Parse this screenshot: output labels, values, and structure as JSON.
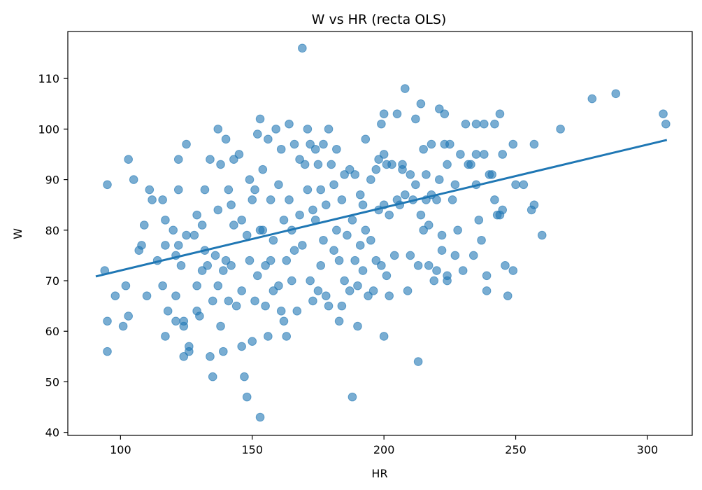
{
  "chart_data": {
    "type": "scatter",
    "title": "W vs HR (recta OLS)",
    "xlabel": "HR",
    "ylabel": "W",
    "xlim": [
      80,
      317
    ],
    "ylim": [
      39.4,
      119.3
    ],
    "xticks": [
      100,
      150,
      200,
      250,
      300
    ],
    "yticks": [
      40,
      50,
      60,
      70,
      80,
      90,
      100,
      110
    ],
    "grid": false,
    "point_color": "#1f77b4",
    "line_color": "#1f77b4",
    "series": [
      {
        "kind": "points",
        "points": [
          [
            95,
            89
          ],
          [
            95,
            62
          ],
          [
            95,
            56
          ],
          [
            94,
            72
          ],
          [
            98,
            67
          ],
          [
            101,
            61
          ],
          [
            102,
            69
          ],
          [
            103,
            94
          ],
          [
            103,
            63
          ],
          [
            105,
            90
          ],
          [
            107,
            76
          ],
          [
            108,
            77
          ],
          [
            109,
            81
          ],
          [
            110,
            67
          ],
          [
            111,
            88
          ],
          [
            112,
            86
          ],
          [
            114,
            74
          ],
          [
            116,
            86
          ],
          [
            116,
            69
          ],
          [
            117,
            82
          ],
          [
            117,
            77
          ],
          [
            117,
            59
          ],
          [
            118,
            64
          ],
          [
            120,
            80
          ],
          [
            121,
            75
          ],
          [
            121,
            67
          ],
          [
            121,
            62
          ],
          [
            122,
            94
          ],
          [
            122,
            77
          ],
          [
            122,
            88
          ],
          [
            123,
            73
          ],
          [
            124,
            61
          ],
          [
            124,
            55
          ],
          [
            124,
            62
          ],
          [
            125,
            97
          ],
          [
            125,
            79
          ],
          [
            126,
            57
          ],
          [
            126,
            56
          ],
          [
            128,
            79
          ],
          [
            129,
            64
          ],
          [
            129,
            69
          ],
          [
            129,
            83
          ],
          [
            130,
            63
          ],
          [
            131,
            81
          ],
          [
            131,
            72
          ],
          [
            132,
            88
          ],
          [
            132,
            76
          ],
          [
            133,
            73
          ],
          [
            134,
            94
          ],
          [
            134,
            55
          ],
          [
            135,
            51
          ],
          [
            135,
            66
          ],
          [
            136,
            75
          ],
          [
            137,
            100
          ],
          [
            137,
            84
          ],
          [
            137,
            69
          ],
          [
            138,
            93
          ],
          [
            138,
            61
          ],
          [
            139,
            72
          ],
          [
            139,
            56
          ],
          [
            140,
            98
          ],
          [
            140,
            74
          ],
          [
            141,
            88
          ],
          [
            141,
            66
          ],
          [
            142,
            73
          ],
          [
            142,
            85
          ],
          [
            143,
            81
          ],
          [
            143,
            94
          ],
          [
            144,
            65
          ],
          [
            145,
            95
          ],
          [
            146,
            82
          ],
          [
            146,
            68
          ],
          [
            146,
            57
          ],
          [
            147,
            51
          ],
          [
            148,
            47
          ],
          [
            148,
            79
          ],
          [
            149,
            90
          ],
          [
            149,
            74
          ],
          [
            150,
            86
          ],
          [
            150,
            58
          ],
          [
            151,
            66
          ],
          [
            151,
            88
          ],
          [
            152,
            99
          ],
          [
            152,
            71
          ],
          [
            153,
            102
          ],
          [
            153,
            43
          ],
          [
            153,
            80
          ],
          [
            154,
            92
          ],
          [
            154,
            80
          ],
          [
            155,
            73
          ],
          [
            155,
            65
          ],
          [
            156,
            59
          ],
          [
            156,
            98
          ],
          [
            157,
            86
          ],
          [
            157,
            74
          ],
          [
            158,
            78
          ],
          [
            158,
            68
          ],
          [
            159,
            100
          ],
          [
            160,
            89
          ],
          [
            160,
            69
          ],
          [
            161,
            96
          ],
          [
            161,
            64
          ],
          [
            162,
            82
          ],
          [
            162,
            62
          ],
          [
            163,
            59
          ],
          [
            163,
            74
          ],
          [
            164,
            101
          ],
          [
            164,
            86
          ],
          [
            165,
            80
          ],
          [
            165,
            70
          ],
          [
            166,
            97
          ],
          [
            166,
            76
          ],
          [
            167,
            64
          ],
          [
            168,
            94
          ],
          [
            168,
            83
          ],
          [
            169,
            77
          ],
          [
            169,
            116
          ],
          [
            170,
            93
          ],
          [
            171,
            100
          ],
          [
            171,
            88
          ],
          [
            172,
            97
          ],
          [
            172,
            70
          ],
          [
            173,
            84
          ],
          [
            173,
            66
          ],
          [
            174,
            96
          ],
          [
            174,
            82
          ],
          [
            175,
            93
          ],
          [
            175,
            68
          ],
          [
            176,
            88
          ],
          [
            176,
            73
          ],
          [
            177,
            97
          ],
          [
            177,
            78
          ],
          [
            178,
            85
          ],
          [
            178,
            67
          ],
          [
            179,
            100
          ],
          [
            179,
            65
          ],
          [
            180,
            93
          ],
          [
            181,
            89
          ],
          [
            181,
            76
          ],
          [
            182,
            96
          ],
          [
            182,
            80
          ],
          [
            183,
            62
          ],
          [
            183,
            74
          ],
          [
            184,
            86
          ],
          [
            184,
            65
          ],
          [
            185,
            91
          ],
          [
            185,
            70
          ],
          [
            186,
            79
          ],
          [
            187,
            92
          ],
          [
            187,
            68
          ],
          [
            188,
            47
          ],
          [
            188,
            82
          ],
          [
            189,
            91
          ],
          [
            189,
            74
          ],
          [
            190,
            61
          ],
          [
            190,
            69
          ],
          [
            191,
            87
          ],
          [
            191,
            77
          ],
          [
            192,
            85
          ],
          [
            192,
            72
          ],
          [
            193,
            98
          ],
          [
            193,
            80
          ],
          [
            194,
            67
          ],
          [
            195,
            90
          ],
          [
            195,
            78
          ],
          [
            196,
            68
          ],
          [
            197,
            92
          ],
          [
            197,
            74
          ],
          [
            198,
            84
          ],
          [
            198,
            94
          ],
          [
            199,
            101
          ],
          [
            199,
            73
          ],
          [
            200,
            103
          ],
          [
            200,
            95
          ],
          [
            200,
            59
          ],
          [
            200,
            85
          ],
          [
            201,
            93
          ],
          [
            201,
            71
          ],
          [
            202,
            83
          ],
          [
            202,
            67
          ],
          [
            203,
            93
          ],
          [
            204,
            75
          ],
          [
            205,
            103
          ],
          [
            205,
            86
          ],
          [
            206,
            85
          ],
          [
            207,
            93
          ],
          [
            207,
            92
          ],
          [
            208,
            108
          ],
          [
            208,
            87
          ],
          [
            209,
            68
          ],
          [
            210,
            91
          ],
          [
            210,
            75
          ],
          [
            211,
            86
          ],
          [
            212,
            102
          ],
          [
            212,
            89
          ],
          [
            213,
            73
          ],
          [
            213,
            54
          ],
          [
            214,
            105
          ],
          [
            214,
            83
          ],
          [
            215,
            96
          ],
          [
            215,
            80
          ],
          [
            216,
            91
          ],
          [
            216,
            86
          ],
          [
            217,
            81
          ],
          [
            217,
            73
          ],
          [
            218,
            97
          ],
          [
            218,
            87
          ],
          [
            219,
            70
          ],
          [
            220,
            72
          ],
          [
            220,
            86
          ],
          [
            221,
            104
          ],
          [
            221,
            90
          ],
          [
            222,
            79
          ],
          [
            222,
            76
          ],
          [
            223,
            103
          ],
          [
            223,
            97
          ],
          [
            224,
            93
          ],
          [
            224,
            71
          ],
          [
            224,
            70
          ],
          [
            225,
            97
          ],
          [
            226,
            86
          ],
          [
            227,
            89
          ],
          [
            227,
            75
          ],
          [
            228,
            80
          ],
          [
            229,
            95
          ],
          [
            230,
            72
          ],
          [
            231,
            101
          ],
          [
            232,
            93
          ],
          [
            233,
            93
          ],
          [
            234,
            75
          ],
          [
            235,
            101
          ],
          [
            235,
            95
          ],
          [
            235,
            89
          ],
          [
            236,
            82
          ],
          [
            237,
            78
          ],
          [
            238,
            101
          ],
          [
            238,
            95
          ],
          [
            239,
            71
          ],
          [
            239,
            68
          ],
          [
            240,
            91
          ],
          [
            241,
            91
          ],
          [
            242,
            86
          ],
          [
            242,
            101
          ],
          [
            243,
            83
          ],
          [
            244,
            103
          ],
          [
            244,
            83
          ],
          [
            245,
            95
          ],
          [
            245,
            84
          ],
          [
            246,
            73
          ],
          [
            247,
            67
          ],
          [
            249,
            97
          ],
          [
            249,
            72
          ],
          [
            250,
            89
          ],
          [
            253,
            89
          ],
          [
            256,
            84
          ],
          [
            257,
            97
          ],
          [
            257,
            85
          ],
          [
            260,
            79
          ],
          [
            267,
            100
          ],
          [
            279,
            106
          ],
          [
            288,
            107
          ],
          [
            306,
            103
          ],
          [
            307,
            101
          ]
        ]
      },
      {
        "kind": "ols_line",
        "points": [
          [
            91,
            70.9
          ],
          [
            307,
            97.8
          ]
        ]
      }
    ]
  }
}
